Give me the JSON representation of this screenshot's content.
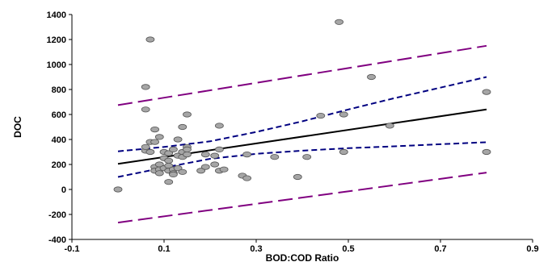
{
  "chart_data": {
    "type": "scatter",
    "title": "",
    "xlabel": "BOD:COD Ratio",
    "ylabel": "DOC",
    "xlim": [
      -0.1,
      0.9
    ],
    "ylim": [
      -400,
      1400
    ],
    "xticks": [
      -0.1,
      0.1,
      0.3,
      0.5,
      0.7,
      0.9
    ],
    "xtick_labels": [
      "-0.1",
      "0.1",
      "0.3",
      "0.5",
      "0.7",
      "0.9"
    ],
    "yticks": [
      -400,
      -200,
      0,
      200,
      400,
      600,
      800,
      1000,
      1200,
      1400
    ],
    "ytick_labels": [
      "-400",
      "-200",
      "0",
      "200",
      "400",
      "600",
      "800",
      "1000",
      "1200",
      "1400"
    ],
    "grid": false,
    "legend": "none",
    "colors": {
      "points_fill": "#a6a6a6",
      "points_stroke": "#555555",
      "regression": "#000000",
      "confidence": "#000080",
      "prediction": "#800080"
    },
    "points": [
      {
        "x": 0.0,
        "y": 0
      },
      {
        "x": 0.06,
        "y": 820
      },
      {
        "x": 0.06,
        "y": 640
      },
      {
        "x": 0.07,
        "y": 1200
      },
      {
        "x": 0.06,
        "y": 310
      },
      {
        "x": 0.06,
        "y": 340
      },
      {
        "x": 0.07,
        "y": 300
      },
      {
        "x": 0.07,
        "y": 380
      },
      {
        "x": 0.08,
        "y": 480
      },
      {
        "x": 0.08,
        "y": 380
      },
      {
        "x": 0.08,
        "y": 180
      },
      {
        "x": 0.08,
        "y": 150
      },
      {
        "x": 0.09,
        "y": 420
      },
      {
        "x": 0.09,
        "y": 200
      },
      {
        "x": 0.09,
        "y": 160
      },
      {
        "x": 0.09,
        "y": 130
      },
      {
        "x": 0.1,
        "y": 300
      },
      {
        "x": 0.1,
        "y": 250
      },
      {
        "x": 0.1,
        "y": 170
      },
      {
        "x": 0.11,
        "y": 290
      },
      {
        "x": 0.11,
        "y": 230
      },
      {
        "x": 0.11,
        "y": 190
      },
      {
        "x": 0.11,
        "y": 150
      },
      {
        "x": 0.11,
        "y": 60
      },
      {
        "x": 0.12,
        "y": 320
      },
      {
        "x": 0.12,
        "y": 160
      },
      {
        "x": 0.12,
        "y": 130
      },
      {
        "x": 0.12,
        "y": 120
      },
      {
        "x": 0.13,
        "y": 400
      },
      {
        "x": 0.13,
        "y": 270
      },
      {
        "x": 0.13,
        "y": 170
      },
      {
        "x": 0.14,
        "y": 500
      },
      {
        "x": 0.14,
        "y": 300
      },
      {
        "x": 0.14,
        "y": 260
      },
      {
        "x": 0.14,
        "y": 140
      },
      {
        "x": 0.15,
        "y": 600
      },
      {
        "x": 0.15,
        "y": 340
      },
      {
        "x": 0.15,
        "y": 320
      },
      {
        "x": 0.15,
        "y": 280
      },
      {
        "x": 0.18,
        "y": 150
      },
      {
        "x": 0.19,
        "y": 280
      },
      {
        "x": 0.19,
        "y": 180
      },
      {
        "x": 0.21,
        "y": 270
      },
      {
        "x": 0.21,
        "y": 200
      },
      {
        "x": 0.22,
        "y": 510
      },
      {
        "x": 0.22,
        "y": 320
      },
      {
        "x": 0.22,
        "y": 150
      },
      {
        "x": 0.23,
        "y": 160
      },
      {
        "x": 0.27,
        "y": 110
      },
      {
        "x": 0.28,
        "y": 280
      },
      {
        "x": 0.28,
        "y": 90
      },
      {
        "x": 0.34,
        "y": 260
      },
      {
        "x": 0.39,
        "y": 100
      },
      {
        "x": 0.41,
        "y": 260
      },
      {
        "x": 0.44,
        "y": 590
      },
      {
        "x": 0.48,
        "y": 1340
      },
      {
        "x": 0.49,
        "y": 600
      },
      {
        "x": 0.49,
        "y": 300
      },
      {
        "x": 0.55,
        "y": 900
      },
      {
        "x": 0.59,
        "y": 510
      },
      {
        "x": 0.8,
        "y": 780
      },
      {
        "x": 0.8,
        "y": 300
      }
    ],
    "regression_line": [
      [
        0.0,
        205
      ],
      [
        0.8,
        640
      ]
    ],
    "confidence_upper": [
      [
        0.0,
        305
      ],
      [
        0.1,
        340
      ],
      [
        0.2,
        385
      ],
      [
        0.3,
        460
      ],
      [
        0.4,
        545
      ],
      [
        0.5,
        640
      ],
      [
        0.6,
        730
      ],
      [
        0.7,
        815
      ],
      [
        0.8,
        900
      ]
    ],
    "confidence_lower": [
      [
        0.0,
        100
      ],
      [
        0.1,
        175
      ],
      [
        0.2,
        245
      ],
      [
        0.3,
        285
      ],
      [
        0.4,
        310
      ],
      [
        0.5,
        330
      ],
      [
        0.6,
        345
      ],
      [
        0.7,
        362
      ],
      [
        0.8,
        378
      ]
    ],
    "prediction_upper": [
      [
        0.0,
        675
      ],
      [
        0.8,
        1150
      ]
    ],
    "prediction_lower": [
      [
        0.0,
        -265
      ],
      [
        0.8,
        135
      ]
    ]
  }
}
